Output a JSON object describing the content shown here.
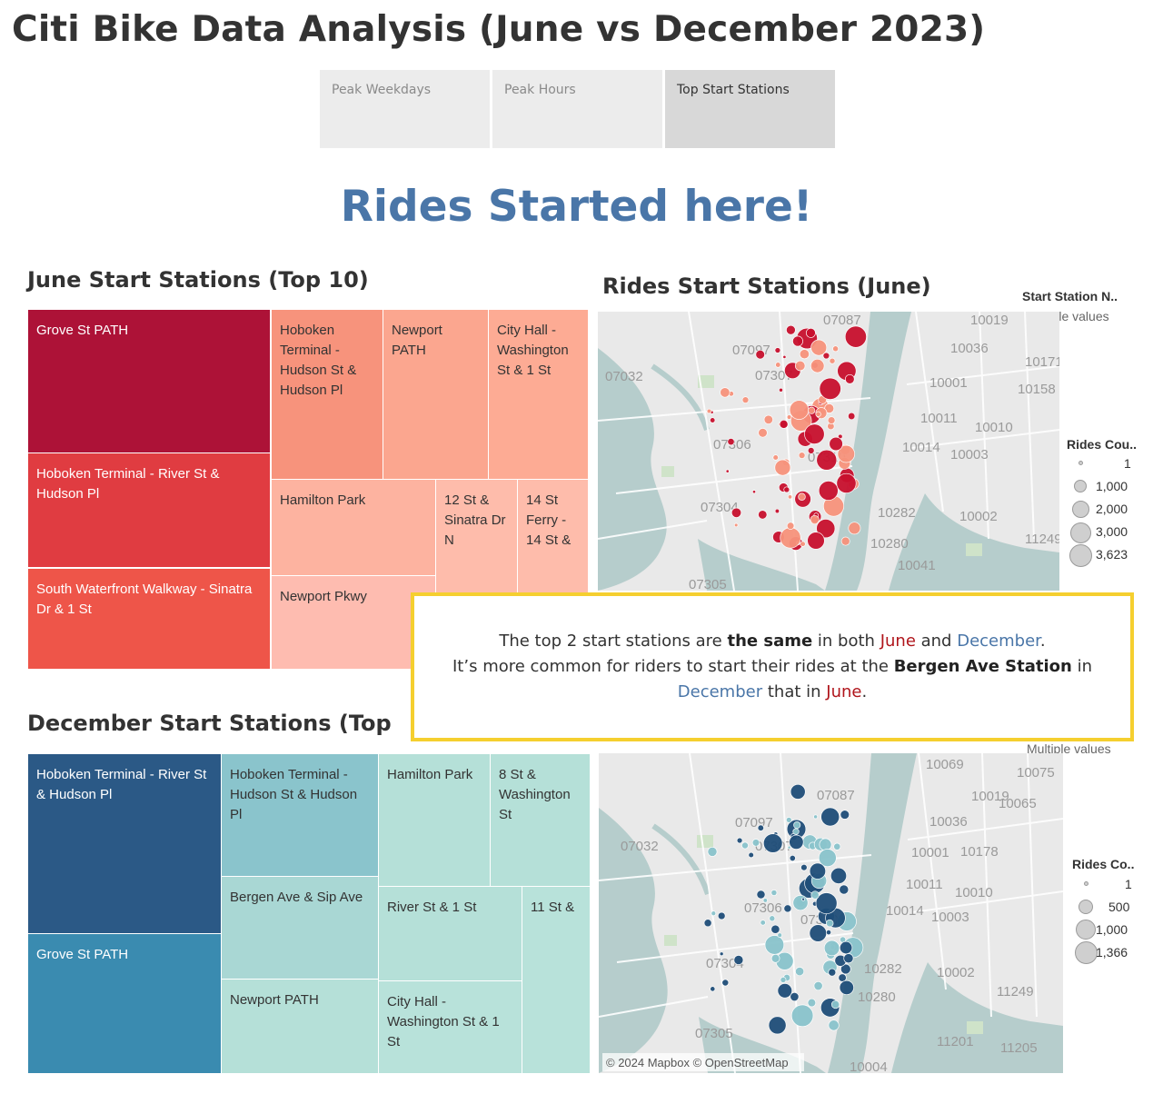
{
  "title": "Citi Bike Data Analysis (June vs December 2023)",
  "tabs": [
    {
      "label": "Peak Weekdays",
      "active": false
    },
    {
      "label": "Peak Hours",
      "active": false
    },
    {
      "label": "Top Start Stations",
      "active": true
    }
  ],
  "banner": "Rides Started here!",
  "june_treemap": {
    "title": "June Start Stations (Top 10)",
    "cells": [
      {
        "label": "Grove St PATH",
        "color": "#ad1237"
      },
      {
        "label": "Hoboken Terminal - River St & Hudson Pl",
        "color": "#e03c41"
      },
      {
        "label": "South Waterfront Walkway - Sinatra Dr & 1 St",
        "color": "#ee5549"
      },
      {
        "label": "Hoboken Terminal - Hudson St & Hudson Pl",
        "color": "#f7937c"
      },
      {
        "label": "Newport PATH",
        "color": "#fba68f"
      },
      {
        "label": "City Hall - Washington St & 1 St",
        "color": "#fdab94"
      },
      {
        "label": "Hamilton Park",
        "color": "#fdb3a0"
      },
      {
        "label": "12 St & Sinatra Dr N",
        "color": "#febcab"
      },
      {
        "label": "14 St Ferry - 14 St &",
        "color": "#febcab"
      },
      {
        "label": "Newport Pkwy",
        "color": "#febcb0"
      }
    ]
  },
  "december_treemap": {
    "title": "December Start Stations (Top",
    "cells": [
      {
        "label": "Hoboken Terminal - River St & Hudson Pl",
        "color": "#2b5986"
      },
      {
        "label": "Grove St PATH",
        "color": "#3a8bb0"
      },
      {
        "label": "Hoboken Terminal - Hudson St & Hudson Pl",
        "color": "#8ac4cc"
      },
      {
        "label": "Bergen Ave & Sip Ave",
        "color": "#a9d7d4"
      },
      {
        "label": "Newport PATH",
        "color": "#b5e0d8"
      },
      {
        "label": "Hamilton Park",
        "color": "#b5e0d8"
      },
      {
        "label": "8 St & Washington St",
        "color": "#b5e0d8"
      },
      {
        "label": "River St & 1 St",
        "color": "#b5e0d8"
      },
      {
        "label": "City Hall - Washington St & 1 St",
        "color": "#b8e2da"
      },
      {
        "label": "11 St &",
        "color": "#b8e2da"
      }
    ]
  },
  "june_map": {
    "title": "Rides Start Stations (June)",
    "filter_title": "Start Station N..",
    "filter_value": "Multiple values",
    "legend_title": "Rides Cou..",
    "legend_values": [
      "1",
      "1,000",
      "2,000",
      "3,000",
      "3,623"
    ],
    "zips": [
      "07087",
      "10019",
      "10036",
      "07097",
      "10171",
      "07032",
      "07307",
      "10001",
      "10158",
      "10011",
      "10010",
      "07306",
      "10014",
      "10003",
      "07310",
      "07304",
      "10282",
      "10002",
      "10280",
      "11249",
      "10041",
      "07305"
    ]
  },
  "december_map": {
    "filter_value": "Multiple values",
    "legend_title": "Rides Co..",
    "legend_values": [
      "1",
      "500",
      "1,000",
      "1,366"
    ],
    "zips": [
      "10069",
      "10075",
      "07087",
      "10019",
      "10065",
      "07097",
      "10036",
      "07032",
      "07307",
      "10001",
      "10178",
      "10011",
      "10010",
      "07306",
      "10014",
      "10003",
      "07310",
      "07304",
      "10282",
      "10002",
      "10280",
      "11249",
      "07305",
      "11201",
      "11205",
      "10004"
    ],
    "attribution": "© 2024 Mapbox © OpenStreetMap"
  },
  "callout": {
    "line1_a": "The top 2 start stations are ",
    "line1_b": "the same",
    "line1_c": " in both ",
    "line1_june": "June",
    "line1_d": " and ",
    "line1_dec": "December",
    "line1_e": ".",
    "line2_a": "It’s more common for riders to start their rides at the ",
    "line2_b": "Bergen Ave Station",
    "line2_c": " in",
    "line3_dec": "December",
    "line3_a": " that in ",
    "line3_june": "June",
    "line3_b": "."
  },
  "colors": {
    "accent_blue": "#4a76a8",
    "accent_red": "#b0151b",
    "callout_border": "#f5cf2f",
    "june_dot_dark": "#c8102e",
    "june_dot_light": "#f7937c",
    "dec_dot_dark": "#1f4e79",
    "dec_dot_light": "#8ac4cc"
  }
}
